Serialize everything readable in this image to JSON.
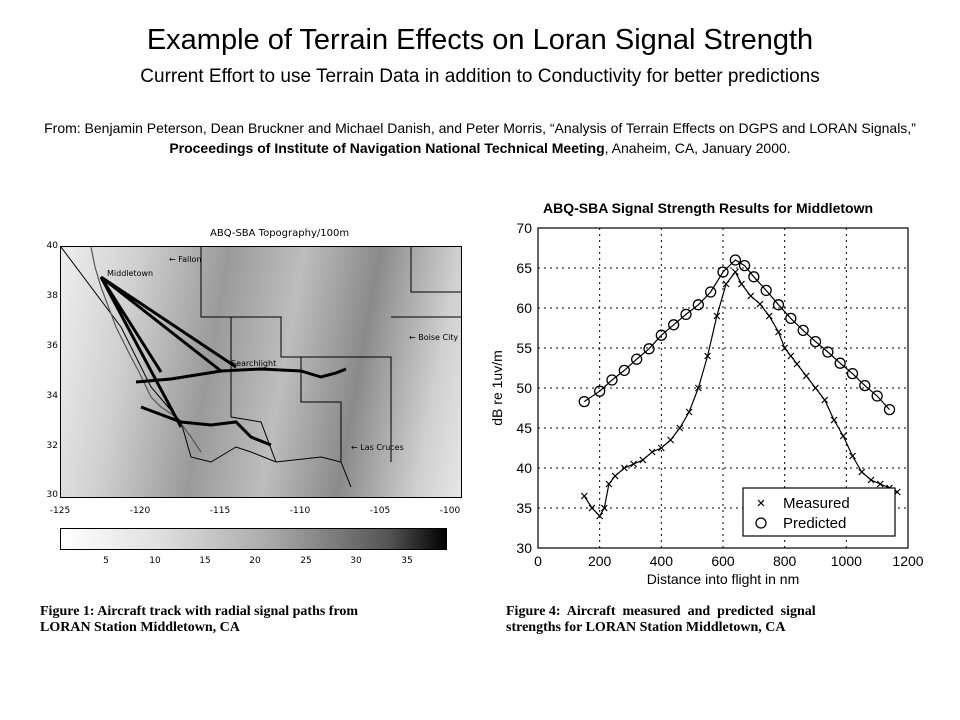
{
  "header": {
    "title": "Example of Terrain Effects on Loran Signal Strength",
    "subtitle": "Current Effort to use Terrain Data in addition to Conductivity for better predictions",
    "citation_prefix": "From: Benjamin Peterson, Dean Bruckner and Michael Danish, and Peter Morris, “Analysis of Terrain Effects on DGPS and LORAN Signals,”",
    "citation_bold": "Proceedings of Institute of Navigation National Technical Meeting",
    "citation_suffix": ", Anaheim, CA, January 2000."
  },
  "map": {
    "title": "ABQ-SBA Topography/100m",
    "yticks": [
      "40",
      "38",
      "36",
      "34",
      "32",
      "30"
    ],
    "xticks": [
      "-125",
      "-120",
      "-115",
      "-110",
      "-105",
      "-100"
    ],
    "colorbar_ticks": [
      "5",
      "10",
      "15",
      "20",
      "25",
      "30",
      "35"
    ],
    "labels": {
      "fallon": "Fallon",
      "middletown": "Middletown",
      "boise": "Boise City",
      "searchlight": "Searchlight",
      "las_cruces": "Las Cruces"
    },
    "caption_line1": "Figure 1: Aircraft track with radial signal paths from",
    "caption_line2": "LORAN Station Middletown, CA"
  },
  "chart_data": {
    "type": "line",
    "title": "ABQ-SBA Signal Strength Results for Middletown",
    "xlabel": "Distance into flight in nm",
    "ylabel": "dB re 1uv/m",
    "xlim": [
      0,
      1200
    ],
    "ylim": [
      30,
      70
    ],
    "xticks": [
      0,
      200,
      400,
      600,
      800,
      1000,
      1200
    ],
    "yticks": [
      30,
      35,
      40,
      45,
      50,
      55,
      60,
      65,
      70
    ],
    "grid": true,
    "legend_position": "bottom-right",
    "series": [
      {
        "name": "Measured",
        "marker": "x",
        "x": [
          150,
          175,
          200,
          215,
          230,
          250,
          280,
          310,
          340,
          370,
          400,
          430,
          460,
          490,
          520,
          550,
          580,
          610,
          640,
          660,
          690,
          720,
          750,
          780,
          800,
          820,
          840,
          870,
          900,
          930,
          960,
          990,
          1020,
          1050,
          1080,
          1110,
          1140,
          1165
        ],
        "y": [
          36.5,
          35,
          34,
          35,
          38,
          39,
          40,
          40.5,
          41,
          42,
          42.5,
          43.5,
          45,
          47,
          50,
          54,
          59,
          63,
          64.5,
          63,
          61.5,
          60.5,
          59,
          57,
          55,
          54,
          53,
          51.5,
          50,
          48.5,
          46,
          44,
          41.5,
          39.5,
          38.5,
          38,
          37.5,
          37
        ]
      },
      {
        "name": "Predicted",
        "marker": "o",
        "x": [
          150,
          200,
          240,
          280,
          320,
          360,
          400,
          440,
          480,
          520,
          560,
          600,
          640,
          670,
          700,
          740,
          780,
          820,
          860,
          900,
          940,
          980,
          1020,
          1060,
          1100,
          1140
        ],
        "y": [
          48.3,
          49.6,
          51,
          52.2,
          53.6,
          54.9,
          56.6,
          57.9,
          59.2,
          60.4,
          62,
          64.5,
          66,
          65.3,
          63.9,
          62.2,
          60.4,
          58.7,
          57.2,
          55.8,
          54.5,
          53.1,
          51.8,
          50.3,
          49,
          47.3
        ]
      }
    ],
    "caption_line1": "Figure 4:  Aircraft  measured  and  predicted  signal",
    "caption_line2": "strengths for LORAN Station Middletown, CA"
  }
}
